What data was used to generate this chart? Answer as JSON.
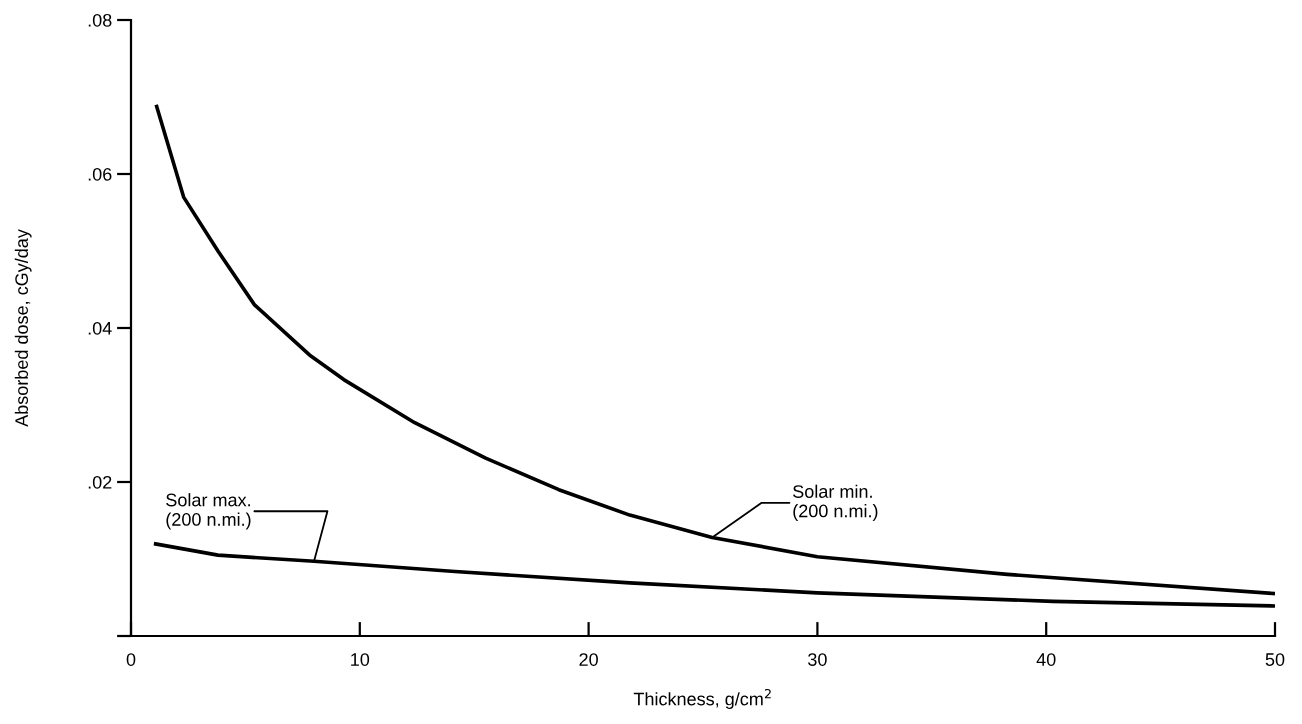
{
  "chart_data": {
    "type": "line",
    "xlabel": "Thickness, g/cm$^{2}$",
    "ylabel": "Absorbed dose, cGy/day",
    "xlim": [
      0,
      50
    ],
    "ylim": [
      0,
      0.08
    ],
    "xticks": [
      0,
      10,
      20,
      30,
      40,
      50
    ],
    "yticks": [
      {
        "value": 0,
        "label": null
      },
      {
        "value": 0.02,
        "label": ".02"
      },
      {
        "value": 0.04,
        "label": ".04"
      },
      {
        "value": 0.06,
        "label": ".06"
      },
      {
        "value": 0.08,
        "label": ".08"
      }
    ],
    "grid": false,
    "legend": false,
    "marker": "none",
    "line_style": "solid",
    "series": [
      {
        "color": "#000000",
        "x": [
          1.1,
          2.3,
          3.8,
          5.4,
          7.8,
          9.3,
          12.4,
          15.5,
          18.7,
          21.8,
          25.4,
          30,
          38.3,
          50
        ],
        "values": [
          0.069,
          0.057,
          0.05,
          0.043,
          0.0365,
          0.0333,
          0.0277,
          0.0231,
          0.019,
          0.0157,
          0.0128,
          0.0103,
          0.008,
          0.0055
        ]
      },
      {
        "color": "#000000",
        "x": [
          1.0,
          3.8,
          8.0,
          14,
          21.8,
          30,
          40.3,
          50
        ],
        "values": [
          0.012,
          0.0105,
          0.0097,
          0.0084,
          0.0069,
          0.0056,
          0.0045,
          0.0039
        ]
      }
    ],
    "annotations": [
      {
        "text": "Solar max.\n(200 n.mi.)",
        "x": 8.0,
        "y": 0.0097
      },
      {
        "text": "Solar min.\n(200 n.mi.)",
        "x": 25.4,
        "y": 0.0128
      }
    ]
  }
}
